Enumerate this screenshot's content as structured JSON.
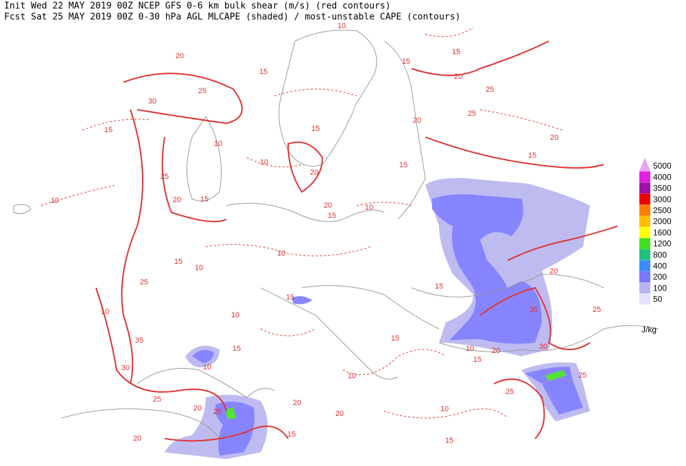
{
  "header": {
    "line1": "Init  Wed 22 MAY 2019 00Z  NCEP GFS 0-6 km bulk shear (m/s) (red contours)",
    "line2": "Fcst Sat 25 MAY 2019 00Z  0-30 hPa AGL MLCAPE (shaded) / most-unstable CAPE (contours)"
  },
  "legend": {
    "levels": [
      {
        "value": 5000,
        "color": "#e8a0f0"
      },
      {
        "value": 4000,
        "color": "#e020e0"
      },
      {
        "value": 3500,
        "color": "#a010a8"
      },
      {
        "value": 3000,
        "color": "#f00000"
      },
      {
        "value": 2500,
        "color": "#ff7f00"
      },
      {
        "value": 2000,
        "color": "#ffbf00"
      },
      {
        "value": 1600,
        "color": "#ffff00"
      },
      {
        "value": 1200,
        "color": "#40e020"
      },
      {
        "value": 800,
        "color": "#20c080"
      },
      {
        "value": 400,
        "color": "#3c8cff"
      },
      {
        "value": 200,
        "color": "#7a78ff"
      },
      {
        "value": 100,
        "color": "#b8b4f0"
      },
      {
        "value": 50,
        "color": "#e4e2f8"
      }
    ],
    "unit": "J/kg"
  },
  "map": {
    "contour_labels": [
      10,
      15,
      20,
      25,
      25,
      20,
      20,
      15,
      15,
      20,
      30,
      25,
      15,
      15,
      10,
      10,
      15,
      20,
      15,
      15,
      20,
      25,
      10,
      10,
      20,
      15,
      10,
      10,
      15,
      25,
      10,
      35,
      30,
      25,
      20,
      25,
      20,
      15,
      20,
      10,
      15,
      25,
      25,
      30,
      30,
      20,
      15,
      10,
      20,
      25,
      15,
      10,
      15,
      10,
      10,
      15,
      20,
      15
    ]
  }
}
